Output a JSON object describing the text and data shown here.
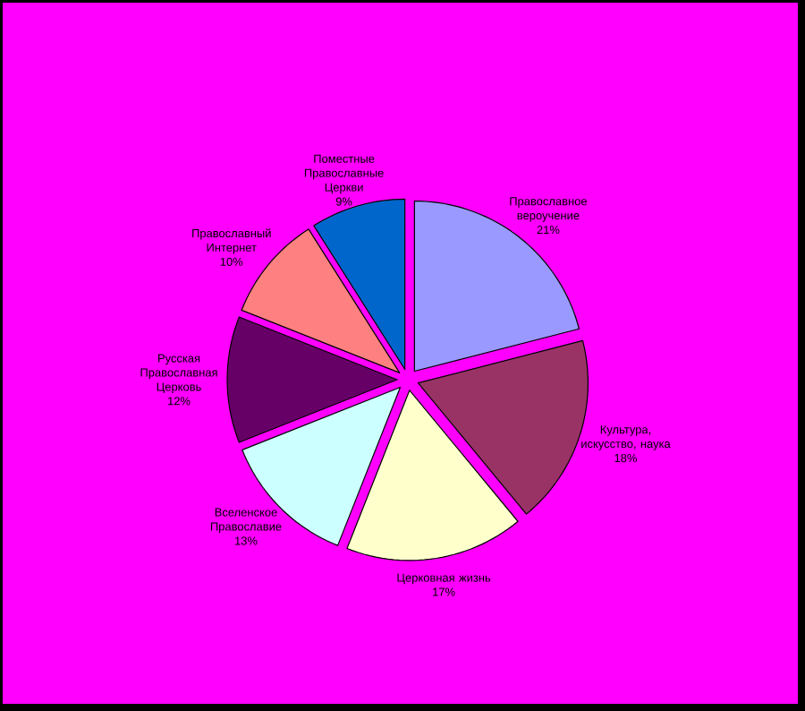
{
  "chart_data": {
    "type": "pie",
    "categories": [
      "Православное вероучение",
      "Культура, искусство, наука",
      "Церковная жизнь",
      "Вселенское Православие",
      "Русская Православная Церковь",
      "Православный Интернет",
      "Поместные Православные Церкви"
    ],
    "values": [
      21,
      18,
      17,
      13,
      12,
      10,
      9
    ],
    "value_labels": [
      "21%",
      "18%",
      "17%",
      "13%",
      "12%",
      "10%",
      "9%"
    ],
    "colors": [
      "#9999ff",
      "#993366",
      "#ffffcc",
      "#ccffff",
      "#660066",
      "#ff8080",
      "#0066cc"
    ]
  }
}
